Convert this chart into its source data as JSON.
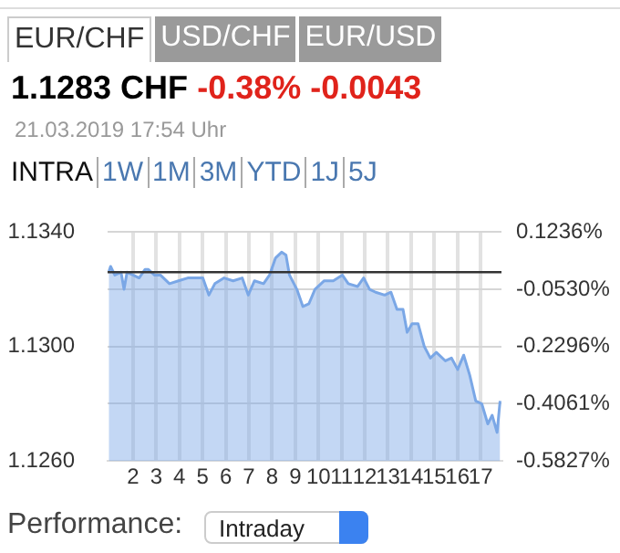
{
  "chart_data": {
    "type": "area",
    "annotations": [
      "EUR/CHF",
      "USD/CHF",
      "EUR/USD",
      "1.1283 CHF",
      "-0.38% -0.0043",
      "21.03.2019 17:54 Uhr",
      "INTRA",
      "1W",
      "1M",
      "3M",
      "YTD",
      "1J",
      "5J",
      "Performance:",
      "Intraday"
    ],
    "x": [
      0.95,
      1.03,
      1.21,
      1.48,
      1.61,
      1.74,
      2,
      2.26,
      2.52,
      2.65,
      2.92,
      3.18,
      3.57,
      3.96,
      4.36,
      4.75,
      5.01,
      5.27,
      5.53,
      5.93,
      6.32,
      6.71,
      6.97,
      7.24,
      7.63,
      7.89,
      8.15,
      8.41,
      8.6,
      8.75,
      9.07,
      9.33,
      9.59,
      9.85,
      10.25,
      10.64,
      11.03,
      11.29,
      11.69,
      11.95,
      12.21,
      12.47,
      12.86,
      13.13,
      13.39,
      13.65,
      13.83,
      14.04,
      14.3,
      14.57,
      14.83,
      15.09,
      15.48,
      15.74,
      16.01,
      16.27,
      16.53,
      16.79,
      17.05,
      17.31,
      17.5,
      17.71,
      17.84
    ],
    "series": [
      {
        "color": "#7aa7e6",
        "values": [
          1.1326,
          1.1328,
          1.1325,
          1.1326,
          1.132,
          1.1326,
          1.1325,
          1.1324,
          1.1327,
          1.1327,
          1.1325,
          1.1325,
          1.1322,
          1.1323,
          1.1324,
          1.1324,
          1.1324,
          1.1318,
          1.1322,
          1.1324,
          1.1323,
          1.1324,
          1.1318,
          1.1323,
          1.1322,
          1.1325,
          1.1331,
          1.1333,
          1.1332,
          1.1325,
          1.132,
          1.1314,
          1.1315,
          1.132,
          1.1323,
          1.1323,
          1.1325,
          1.1322,
          1.1321,
          1.1324,
          1.132,
          1.1319,
          1.1318,
          1.1319,
          1.1313,
          1.1313,
          1.1305,
          1.1308,
          1.1308,
          1.13,
          1.1296,
          1.1298,
          1.1295,
          1.1296,
          1.1292,
          1.1297,
          1.129,
          1.1281,
          1.128,
          1.1273,
          1.1276,
          1.127,
          1.1281
        ]
      }
    ],
    "xlim": [
      0.9,
      17.9
    ],
    "xticks": [
      2,
      3,
      4,
      5,
      6,
      7,
      8,
      9,
      10,
      11,
      12,
      13,
      14,
      15,
      16,
      17
    ],
    "ylim": [
      1.126,
      1.134
    ],
    "yticks": [
      {
        "value": 1.126,
        "label": "1.1260"
      },
      {
        "value": 1.13,
        "label": "1.1300"
      },
      {
        "value": 1.134,
        "label": "1.1340"
      }
    ],
    "y2lim": [
      -0.5827,
      0.1236
    ],
    "y2ticks": [
      {
        "value": -0.5827,
        "label": "-0.5827%"
      },
      {
        "value": -0.4061,
        "label": "-0.4061%"
      },
      {
        "value": -0.2296,
        "label": "-0.2296%"
      },
      {
        "value": -0.053,
        "label": "-0.0530%"
      },
      {
        "value": 0.1236,
        "label": "0.1236%"
      }
    ],
    "ref_lines": [
      {
        "axis": "y",
        "value": 1.1326,
        "color": "#333333"
      }
    ],
    "grid": true,
    "legend": false,
    "marker": "none",
    "line_style": "solid"
  }
}
